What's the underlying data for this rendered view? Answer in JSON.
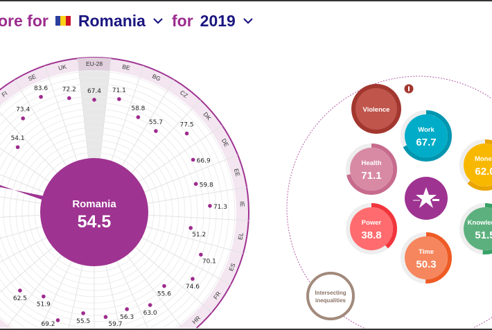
{
  "header": {
    "prefix": "ore for",
    "country": "Romania",
    "connector": "for",
    "year": "2019",
    "flag_colors": [
      "#2b3f9e",
      "#fcd116",
      "#ce1126"
    ]
  },
  "radial": {
    "selected_country": "Romania",
    "selected_score": "54.5",
    "highlight_color": "#9e3391",
    "reference_label": "EU-28",
    "reference_value": 67.4,
    "countries": [
      {
        "code": "EU-28",
        "value": 67.4,
        "label": "67.4"
      },
      {
        "code": "BE",
        "value": 71.1,
        "label": "71.1"
      },
      {
        "code": "BG",
        "value": 58.8,
        "label": "58.8"
      },
      {
        "code": "CZ",
        "value": 55.7,
        "label": "55.7"
      },
      {
        "code": "DK",
        "value": 77.5,
        "label": "77.5"
      },
      {
        "code": "DE",
        "value": 66.9,
        "label": "66.9"
      },
      {
        "code": "EE",
        "value": 59.8,
        "label": "59.8"
      },
      {
        "code": "IE",
        "value": 71.3,
        "label": "71.3"
      },
      {
        "code": "EL",
        "value": 51.2,
        "label": "51.2"
      },
      {
        "code": "ES",
        "value": 70.1,
        "label": "70.1"
      },
      {
        "code": "FR",
        "value": 74.6,
        "label": "74.6"
      },
      {
        "code": "HR",
        "value": 55.6,
        "label": "55.6"
      },
      {
        "code": "",
        "value": 63.0,
        "label": "63.0"
      },
      {
        "code": "",
        "value": 56.3,
        "label": "56.3"
      },
      {
        "code": "",
        "value": 59.7,
        "label": "59.7"
      },
      {
        "code": "",
        "value": 55.5,
        "label": "55.5"
      },
      {
        "code": "",
        "value": 69.2,
        "label": "69.2"
      },
      {
        "code": "",
        "value": 51.9,
        "label": "51.9"
      },
      {
        "code": "",
        "value": 62.5,
        "label": "62.5"
      },
      {
        "code": "",
        "value": null,
        "label": ""
      },
      {
        "code": "",
        "value": null,
        "label": ""
      },
      {
        "code": "",
        "value": null,
        "label": ""
      },
      {
        "code": "",
        "value": null,
        "label": ""
      },
      {
        "code": "",
        "value": 54.5,
        "label": "",
        "selected": true
      },
      {
        "code": "",
        "value": null,
        "label": ""
      },
      {
        "code": "",
        "value": 54.1,
        "label": "54.1"
      },
      {
        "code": "FI",
        "value": 73.4,
        "label": "73.4"
      },
      {
        "code": "SE",
        "value": 83.6,
        "label": "83.6"
      },
      {
        "code": "UK",
        "value": 72.2,
        "label": "72.2"
      }
    ]
  },
  "domains": {
    "info_icon": "info-icon",
    "center_icon": "gender-equality-star-icon",
    "center_color": "#9e3391",
    "items": [
      {
        "name": "Violence",
        "score": "",
        "value": null,
        "fill": "#c0554c",
        "ring": "#a2372f"
      },
      {
        "name": "Work",
        "score": "67.7",
        "value": 67.7,
        "fill": "#00acc8",
        "ring": "#0096b0"
      },
      {
        "name": "Health",
        "score": "71.1",
        "value": 71.1,
        "fill": "#d88aa4",
        "ring": "#c76b8d"
      },
      {
        "name": "Money",
        "score": "62.0",
        "value": 62.0,
        "fill": "#f9b800",
        "ring": "#e9a400"
      },
      {
        "name": "Power",
        "score": "38.8",
        "value": 38.8,
        "fill": "#ff6b6e",
        "ring": "#f2353c"
      },
      {
        "name": "Knowledge",
        "score": "51.5",
        "value": 51.5,
        "fill": "#5cb07e",
        "ring": "#37a165"
      },
      {
        "name": "Time",
        "score": "50.3",
        "value": 50.3,
        "fill": "#f5865e",
        "ring": "#ef5b25"
      }
    ],
    "intersecting": {
      "line1": "Intersecting",
      "line2": "inequalities",
      "ring": "#a28a7c",
      "text_color": "#8a7366"
    }
  }
}
